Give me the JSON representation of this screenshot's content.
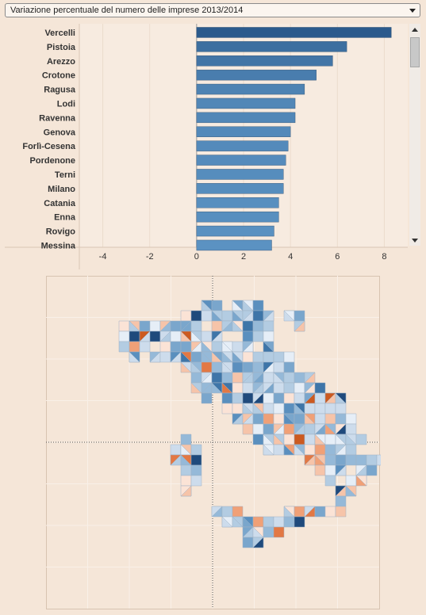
{
  "dropdown": {
    "label": "Variazione percentuale del numero delle imprese 2013/2014"
  },
  "chart_data": {
    "type": "bar",
    "orientation": "horizontal",
    "title": "Variazione percentuale del numero delle imprese 2013/2014",
    "xlabel": "",
    "ylabel": "",
    "xlim": [
      -5,
      9
    ],
    "xticks": [
      -4,
      -2,
      0,
      2,
      4,
      6,
      8
    ],
    "grid": true,
    "color_scale": [
      "#5b92c2",
      "#2b5a8c"
    ],
    "categories": [
      "Vercelli",
      "Pistoia",
      "Arezzo",
      "Crotone",
      "Ragusa",
      "Lodi",
      "Ravenna",
      "Genova",
      "Forlì-Cesena",
      "Pordenone",
      "Terni",
      "Milano",
      "Catania",
      "Enna",
      "Rovigo",
      "Messina"
    ],
    "values": [
      8.3,
      6.4,
      5.8,
      5.1,
      4.6,
      4.2,
      4.2,
      4.0,
      3.9,
      3.8,
      3.7,
      3.7,
      3.5,
      3.5,
      3.3,
      3.2
    ]
  },
  "map": {
    "colors": [
      "#e6eef7",
      "#cddcec",
      "#b3cce2",
      "#95b9d8",
      "#7aa6cc",
      "#5a8fbe",
      "#3e75a8",
      "#1f4a7c",
      "#fbe3d6",
      "#f6c4a9",
      "#f0a077",
      "#e27844",
      "#cc5a20"
    ]
  }
}
